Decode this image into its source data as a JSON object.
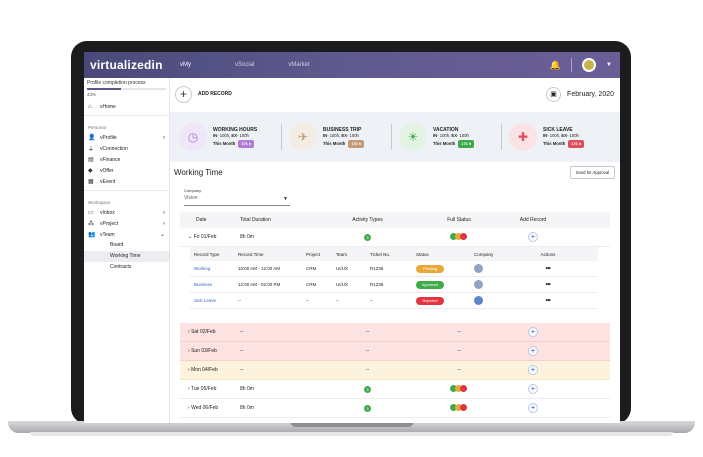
{
  "app": {
    "logo": "virtualizedin",
    "tabs": [
      "vMy",
      "vSocial",
      "vMarket"
    ],
    "active_tab": 0
  },
  "sidebar": {
    "progress_title": "Profile completion process",
    "progress_fraction": 0.43,
    "progress_label": "43%",
    "home": "vHome",
    "personal_head": "Personal",
    "personal": [
      "vProfile",
      "vConnection",
      "vFinance",
      "vOffer",
      "vEvent"
    ],
    "workspace_head": "Workspace",
    "workspace": [
      "vInbox",
      "vProject",
      "vTeam"
    ],
    "team_sub": [
      "Board",
      "Working Time",
      "Contracts"
    ]
  },
  "toolbar": {
    "add_label": "ADD RECORD",
    "month": "February, 2020"
  },
  "cards": [
    {
      "title": "WORKING HOURS",
      "in_label": "IN",
      "in_val": "- 100h,",
      "ex_label": "EX",
      "ex_val": "- 100h",
      "month_label": "This Month",
      "value": "176 h",
      "color": "#b07cd6",
      "icon_bg": "#efe6f8",
      "icon": "◷"
    },
    {
      "title": "BUSINESS TRIP",
      "in_label": "IN",
      "in_val": "- 100h,",
      "ex_label": "EX",
      "ex_val": "- 100h",
      "month_label": "This Month",
      "value": "176 h",
      "color": "#c29a73",
      "icon_bg": "#f3ece3",
      "icon": "✈"
    },
    {
      "title": "VACATION",
      "in_label": "IN",
      "in_val": "- 100h,",
      "ex_label": "EX",
      "ex_val": "- 100h",
      "month_label": "This Month",
      "value": "176 h",
      "color": "#3faa4a",
      "icon_bg": "#e3f3e4",
      "icon": "☀"
    },
    {
      "title": "SICK LEAVE",
      "in_label": "IN",
      "in_val": "- 100h,",
      "ex_label": "EX",
      "ex_val": "- 100h",
      "month_label": "This Month",
      "value": "176 h",
      "color": "#e04e5b",
      "icon_bg": "#fbe3e5",
      "icon": "✚"
    }
  ],
  "section": {
    "title": "Working Time",
    "send_label": "Send for Approval"
  },
  "company": {
    "label": "Company",
    "value": "Vision"
  },
  "table": {
    "headers": [
      "Date",
      "Total Duration",
      "Activity Types",
      "Full Status",
      "Add Record"
    ],
    "expanded": {
      "date": "Fri 01/Feb",
      "duration": "8h 0m",
      "activity": "3",
      "inner_headers": [
        "Record Type",
        "Record Time",
        "Project",
        "Team",
        "Ticket No.",
        "Status",
        "Company",
        "Actions"
      ],
      "records": [
        {
          "type": "Working",
          "time": "10:00 AM - 12:00 AM",
          "project": "CRM",
          "team": "UI/UX",
          "ticket": "R1235",
          "status": "Pending",
          "status_color": "#e7a93a",
          "actions": "•••"
        },
        {
          "type": "Business",
          "time": "12:00 AM - 02:00 PM",
          "project": "CRM",
          "team": "UI/UX",
          "ticket": "R1236",
          "status": "Approved",
          "status_color": "#3faa4a",
          "actions": "•••"
        },
        {
          "type": "Sick Leave",
          "time": "--",
          "project": "--",
          "team": "--",
          "ticket": "--",
          "status": "Rejected",
          "status_color": "#e0343f",
          "actions": "•••"
        }
      ]
    },
    "rows": [
      {
        "date": "Sat 02/Feb",
        "duration": "--",
        "activity": "--",
        "full": "--",
        "tone": "pink"
      },
      {
        "date": "Sun 03/Feb",
        "duration": "--",
        "activity": "--",
        "full": "--",
        "tone": "pink"
      },
      {
        "date": "Mon 04/Feb",
        "duration": "--",
        "activity": "--",
        "full": "--",
        "tone": "cream"
      },
      {
        "date": "Tue 05/Feb",
        "duration": "8h 0m",
        "activity": "3",
        "full": "tri",
        "tone": "plain"
      },
      {
        "date": "Wed 06/Feb",
        "duration": "8h 0m",
        "activity": "3",
        "full": "tri",
        "tone": "plain"
      }
    ]
  }
}
